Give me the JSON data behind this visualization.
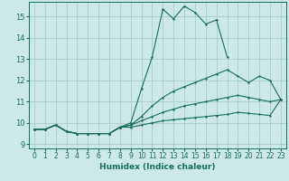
{
  "xlabel": "Humidex (Indice chaleur)",
  "bg_color": "#cce8e8",
  "line_color": "#1a6b60",
  "grid_color": "#b0d4d4",
  "xlim": [
    -0.5,
    23.5
  ],
  "ylim": [
    8.8,
    15.7
  ],
  "yticks": [
    9,
    10,
    11,
    12,
    13,
    14,
    15
  ],
  "xticks": [
    0,
    1,
    2,
    3,
    4,
    5,
    6,
    7,
    8,
    9,
    10,
    11,
    12,
    13,
    14,
    15,
    16,
    17,
    18,
    19,
    20,
    21,
    22,
    23
  ],
  "lines": [
    {
      "x": [
        0,
        1,
        2,
        3,
        4,
        5,
        6,
        7,
        8,
        9,
        10,
        11,
        12,
        13,
        14,
        15,
        16,
        17,
        18
      ],
      "y": [
        9.7,
        9.7,
        9.9,
        9.6,
        9.5,
        9.5,
        9.5,
        9.5,
        9.8,
        10.0,
        11.6,
        13.1,
        15.35,
        14.9,
        15.5,
        15.2,
        14.65,
        14.85,
        13.1
      ]
    },
    {
      "x": [
        0,
        1,
        2,
        3,
        4,
        5,
        6,
        7,
        8,
        9,
        10,
        11,
        12,
        13,
        14,
        15,
        16,
        17,
        18,
        19,
        20,
        21,
        22,
        23
      ],
      "y": [
        9.7,
        9.7,
        9.9,
        9.6,
        9.5,
        9.5,
        9.5,
        9.5,
        9.8,
        9.9,
        10.3,
        10.8,
        11.2,
        11.5,
        11.7,
        11.9,
        12.1,
        12.3,
        12.5,
        12.2,
        11.9,
        12.2,
        12.0,
        11.1
      ]
    },
    {
      "x": [
        0,
        1,
        2,
        3,
        4,
        5,
        6,
        7,
        8,
        9,
        10,
        11,
        12,
        13,
        14,
        15,
        16,
        17,
        18,
        19,
        20,
        21,
        22,
        23
      ],
      "y": [
        9.7,
        9.7,
        9.9,
        9.6,
        9.5,
        9.5,
        9.5,
        9.5,
        9.8,
        9.9,
        10.1,
        10.3,
        10.5,
        10.65,
        10.8,
        10.9,
        11.0,
        11.1,
        11.2,
        11.3,
        11.2,
        11.1,
        11.0,
        11.1
      ]
    },
    {
      "x": [
        0,
        1,
        2,
        3,
        4,
        5,
        6,
        7,
        8,
        9,
        10,
        11,
        12,
        13,
        14,
        15,
        16,
        17,
        18,
        19,
        20,
        21,
        22,
        23
      ],
      "y": [
        9.7,
        9.7,
        9.9,
        9.6,
        9.5,
        9.5,
        9.5,
        9.5,
        9.8,
        9.8,
        9.9,
        10.0,
        10.1,
        10.15,
        10.2,
        10.25,
        10.3,
        10.35,
        10.4,
        10.5,
        10.45,
        10.4,
        10.35,
        11.1
      ]
    }
  ]
}
